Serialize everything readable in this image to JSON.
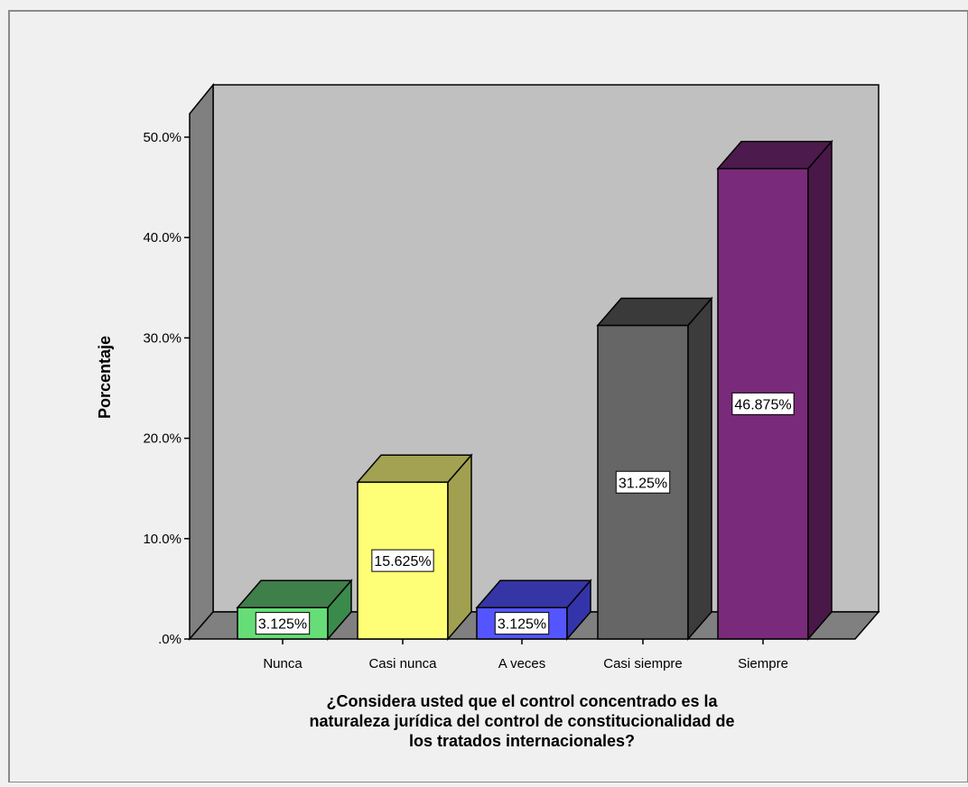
{
  "chart_data": {
    "type": "bar",
    "categories": [
      "Nunca",
      "Casi nunca",
      "A veces",
      "Casi siempre",
      "Siempre"
    ],
    "values": [
      3.125,
      15.625,
      3.125,
      31.25,
      46.875
    ],
    "value_labels": [
      "3.125%",
      "15.625%",
      "3.125%",
      "31.25%",
      "46.875%"
    ],
    "ylabel": "Porcentaje",
    "xlabel_lines": [
      "¿Considera usted que el control concentrado es la",
      "naturaleza jurídica del control de constitucionalidad de",
      "los tratados internacionales?"
    ],
    "ylim": [
      0,
      50
    ],
    "yticks": [
      0,
      10,
      20,
      30,
      40,
      50
    ],
    "ytick_labels": [
      ".0%",
      "10.0%",
      "20.0%",
      "30.0%",
      "40.0%",
      "50.0%"
    ],
    "grid": false,
    "style_3d": true,
    "colors": {
      "background": "#f0f0f0",
      "plot_back_wall": "#c0c0c0",
      "side_wall": "#808080",
      "floor": "#808080",
      "bars": [
        {
          "front": "#66dd77",
          "side": "#3a8a4c",
          "top": "#3f7f4a"
        },
        {
          "front": "#ffff77",
          "side": "#a0a050",
          "top": "#a2a252"
        },
        {
          "front": "#5555ff",
          "side": "#3434aa",
          "top": "#3535a5"
        },
        {
          "front": "#666666",
          "side": "#3c3c3c",
          "top": "#3a3a3a"
        },
        {
          "front": "#7a2a7a",
          "side": "#4a1848",
          "top": "#4c1a4c"
        }
      ]
    }
  }
}
